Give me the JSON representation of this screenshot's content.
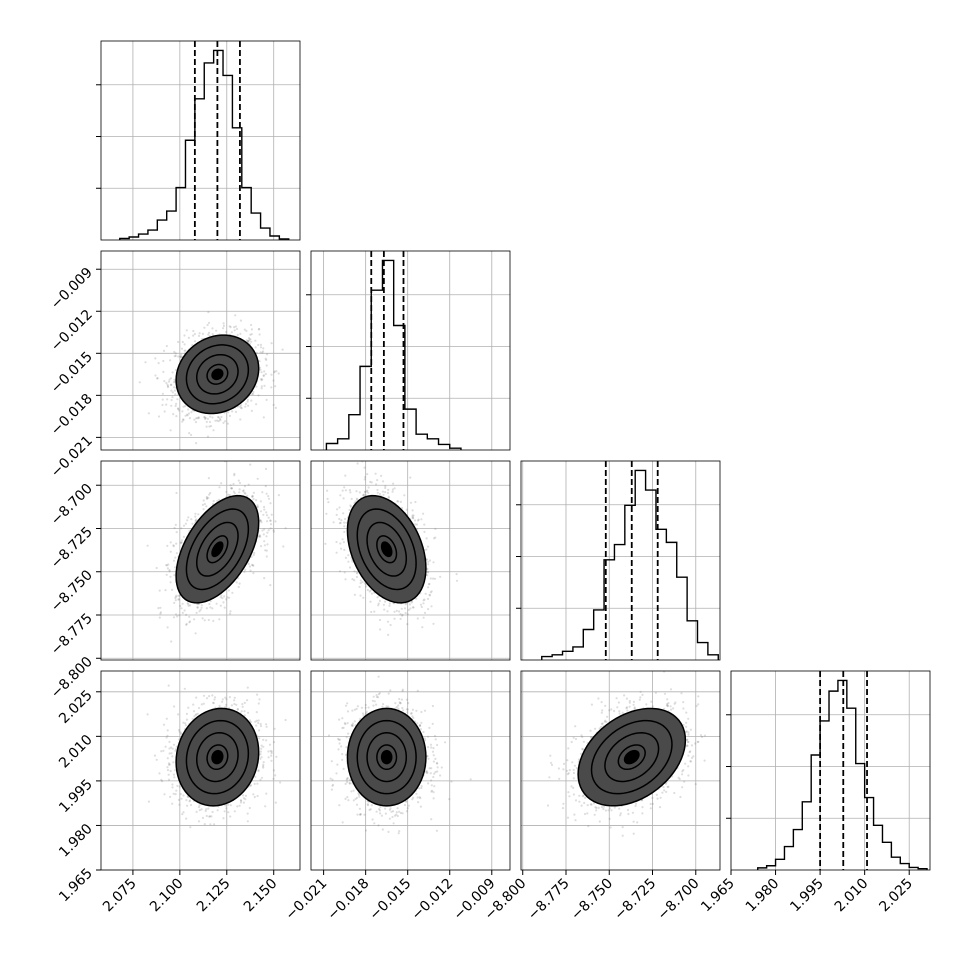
{
  "colors": {
    "line": "#000000",
    "grid": "#b0b0b0",
    "fill_dark": "#000000",
    "points": "#7a7a7a"
  },
  "chart_data": {
    "type": "corner",
    "grid": true,
    "parameters": [
      {
        "range": [
          2.058,
          2.164
        ],
        "ticks": [
          2.075,
          2.1,
          2.125,
          2.15
        ],
        "tick_labels": [
          "2.075",
          "2.100",
          "2.125",
          "2.150"
        ],
        "quantiles": [
          2.108,
          2.12,
          2.132
        ],
        "histogram": {
          "bin_edges": [
            2.068,
            2.073,
            2.078,
            2.083,
            2.088,
            2.093,
            2.098,
            2.103,
            2.108,
            2.113,
            2.118,
            2.123,
            2.128,
            2.133,
            2.138,
            2.143,
            2.148,
            2.153,
            2.158
          ],
          "counts": [
            3,
            6,
            12,
            20,
            40,
            58,
            105,
            200,
            283,
            355,
            380,
            330,
            225,
            105,
            54,
            24,
            8,
            2
          ]
        }
      },
      {
        "range": [
          -0.0219,
          -0.0077
        ],
        "ticks": [
          -0.021,
          -0.018,
          -0.015,
          -0.012,
          -0.009
        ],
        "tick_labels": [
          "−0.021",
          "−0.018",
          "−0.015",
          "−0.012",
          "−0.009"
        ],
        "quantiles": [
          -0.0176,
          -0.0167,
          -0.0153
        ],
        "histogram": {
          "bin_edges": [
            -0.0208,
            -0.02,
            -0.0192,
            -0.0184,
            -0.0176,
            -0.0168,
            -0.016,
            -0.0152,
            -0.0144,
            -0.0136,
            -0.0128,
            -0.012,
            -0.0112
          ],
          "counts": [
            35,
            60,
            190,
            450,
            860,
            1020,
            670,
            220,
            85,
            60,
            30,
            10
          ]
        }
      },
      {
        "range": [
          -8.801,
          -8.686
        ],
        "ticks": [
          -8.8,
          -8.775,
          -8.75,
          -8.725,
          -8.7
        ],
        "tick_labels": [
          "−8.800",
          "−8.775",
          "−8.750",
          "−8.725",
          "−8.700"
        ],
        "quantiles": [
          -8.752,
          -8.737,
          -8.722
        ],
        "histogram": {
          "bin_edges": [
            -8.789,
            -8.783,
            -8.777,
            -8.771,
            -8.765,
            -8.759,
            -8.753,
            -8.747,
            -8.741,
            -8.735,
            -8.729,
            -8.723,
            -8.717,
            -8.711,
            -8.705,
            -8.699,
            -8.693,
            -8.687
          ],
          "counts": [
            8,
            12,
            20,
            30,
            70,
            115,
            230,
            265,
            355,
            435,
            390,
            300,
            270,
            190,
            90,
            40,
            12
          ]
        }
      },
      {
        "range": [
          1.965,
          2.032
        ],
        "ticks": [
          1.965,
          1.98,
          1.995,
          2.01,
          2.025
        ],
        "tick_labels": [
          "1.965",
          "1.980",
          "1.995",
          "2.010",
          "2.025"
        ],
        "quantiles": [
          1.995,
          2.0028,
          2.0108
        ],
        "histogram": {
          "bin_edges": [
            1.974,
            1.977,
            1.98,
            1.983,
            1.986,
            1.989,
            1.992,
            1.995,
            1.998,
            2.001,
            2.004,
            2.007,
            2.01,
            2.013,
            2.016,
            2.019,
            2.022,
            2.025,
            2.028,
            2.031
          ],
          "counts": [
            5,
            10,
            25,
            55,
            95,
            160,
            270,
            350,
            420,
            445,
            380,
            250,
            170,
            105,
            65,
            30,
            15,
            6,
            3
          ]
        }
      }
    ],
    "joint_2d": [
      {
        "row": 1,
        "col": 0,
        "mean": [
          2.12,
          -0.0165
        ],
        "std": [
          0.011,
          0.0014
        ],
        "corr": 0.15,
        "points": 1800
      },
      {
        "row": 2,
        "col": 0,
        "mean": [
          2.12,
          -8.737
        ],
        "std": [
          0.011,
          0.0155
        ],
        "corr": 0.5,
        "points": 1800
      },
      {
        "row": 2,
        "col": 1,
        "mean": [
          -0.0165,
          -8.737
        ],
        "std": [
          0.0014,
          0.0155
        ],
        "corr": -0.35,
        "points": 1800
      },
      {
        "row": 3,
        "col": 0,
        "mean": [
          2.12,
          2.003
        ],
        "std": [
          0.011,
          0.0082
        ],
        "corr": 0.1,
        "points": 1800
      },
      {
        "row": 3,
        "col": 1,
        "mean": [
          -0.0165,
          2.003
        ],
        "std": [
          0.0014,
          0.0082
        ],
        "corr": 0.0,
        "points": 1800
      },
      {
        "row": 3,
        "col": 2,
        "mean": [
          -8.737,
          2.003
        ],
        "std": [
          0.0155,
          0.0082
        ],
        "corr": 0.35,
        "points": 1800
      }
    ],
    "contour_levels_sigma": [
      0.5,
      1.0,
      1.5,
      2.0
    ]
  }
}
